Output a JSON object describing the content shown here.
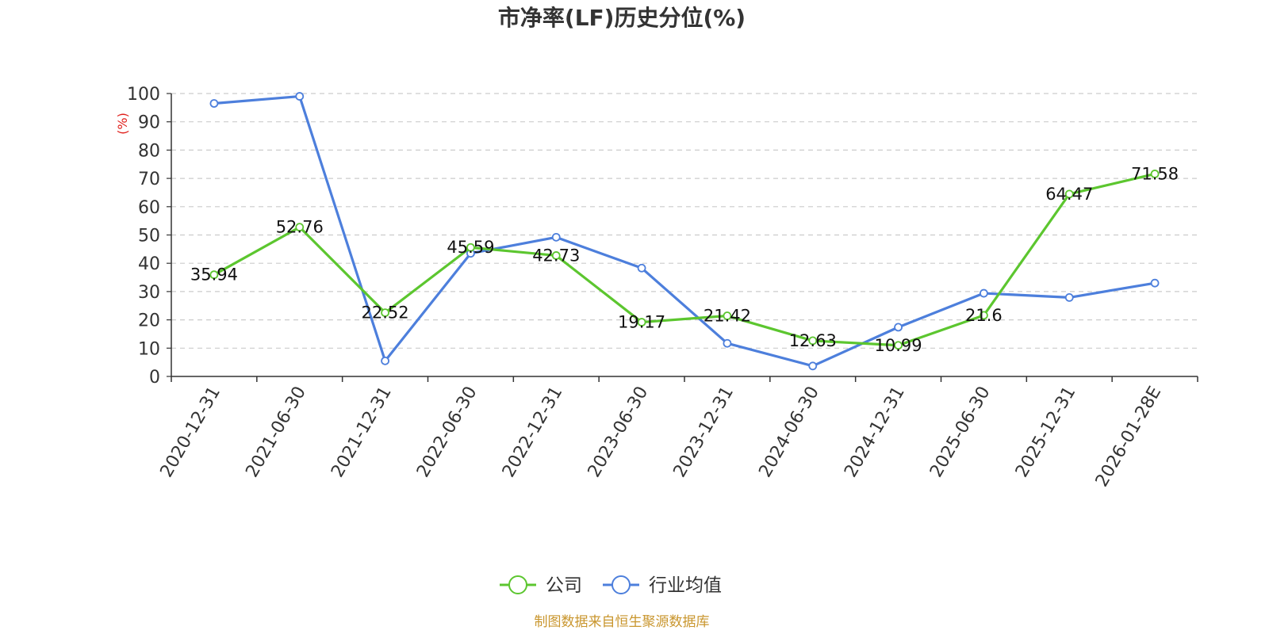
{
  "chart_data": {
    "type": "line",
    "title": "市净率(LF)历史分位(%)",
    "ylabel": "(%)",
    "xlabel": "",
    "ylim": [
      0,
      100
    ],
    "yticks": [
      0,
      10,
      20,
      30,
      40,
      50,
      60,
      70,
      80,
      90,
      100
    ],
    "grid": true,
    "legend_position": "bottom-center",
    "categories": [
      "2020-12-31",
      "2021-06-30",
      "2021-12-31",
      "2022-06-30",
      "2022-12-31",
      "2023-06-30",
      "2023-12-31",
      "2024-06-30",
      "2024-12-31",
      "2025-06-30",
      "2025-12-31",
      "2026-01-28E"
    ],
    "series": [
      {
        "name": "公司",
        "color": "#5cc62f",
        "values": [
          35.94,
          52.76,
          22.52,
          45.59,
          42.73,
          19.17,
          21.42,
          12.63,
          10.99,
          21.6,
          64.47,
          71.58
        ],
        "labels": [
          "35.94",
          "52.76",
          "22.52",
          "45.59",
          "42.73",
          "19.17",
          "21.42",
          "12.63",
          "10.99",
          "21.6",
          "64.47",
          "71.58"
        ]
      },
      {
        "name": "行业均值",
        "color": "#4d7fdc",
        "values": [
          96.5,
          99,
          5.5,
          43.5,
          49.2,
          38.3,
          11.7,
          3.7,
          17.4,
          29.4,
          27.9,
          33
        ]
      }
    ]
  },
  "source": "制图数据来自恒生聚源数据库",
  "colors": {
    "source_text": "#c9962e",
    "ylabel_unit": "#e0201c",
    "grid": "#cccccc",
    "axis": "#333333"
  }
}
